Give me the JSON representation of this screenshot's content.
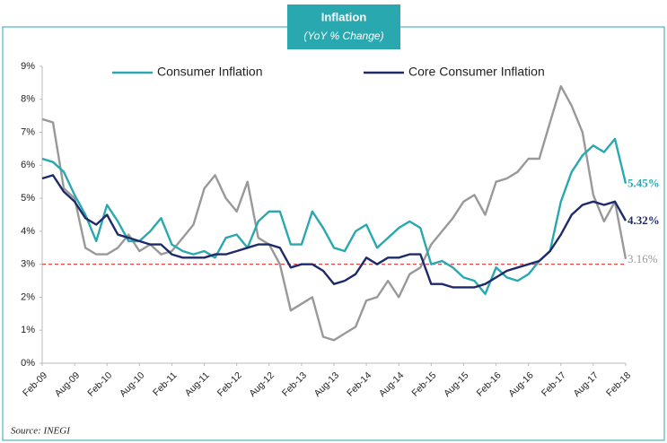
{
  "chart_data": {
    "type": "line",
    "title": "Inflation",
    "subtitle": "(YoY % Change)",
    "source": "Source: INEGI",
    "categories": [
      "Feb-09",
      null,
      null,
      "Aug-09",
      null,
      null,
      "Feb-10",
      null,
      null,
      "Aug-10",
      null,
      null,
      "Feb-11",
      null,
      null,
      "Aug-11",
      null,
      null,
      "Feb-12",
      null,
      null,
      "Aug-12",
      null,
      null,
      "Feb-13",
      null,
      null,
      "Aug-13",
      null,
      null,
      "Feb-14",
      null,
      null,
      "Aug-14",
      null,
      null,
      "Feb-15",
      null,
      null,
      "Aug-15",
      null,
      null,
      "Feb-16",
      null,
      null,
      "Aug-16",
      null,
      null,
      "Feb-17",
      null,
      null,
      "Aug-17",
      null,
      null,
      "Feb-18"
    ],
    "series": [
      {
        "name": "Consumer Inflation",
        "color": "#2aa8b0",
        "in_legend": true,
        "values": [
          6.2,
          6.1,
          5.8,
          5.1,
          4.5,
          3.7,
          4.8,
          4.3,
          3.7,
          3.7,
          4.0,
          4.4,
          3.6,
          3.4,
          3.3,
          3.4,
          3.2,
          3.8,
          3.9,
          3.5,
          4.3,
          4.6,
          4.6,
          3.6,
          3.6,
          4.6,
          4.1,
          3.5,
          3.4,
          4.0,
          4.2,
          3.5,
          3.8,
          4.1,
          4.3,
          4.1,
          3.0,
          3.1,
          2.9,
          2.6,
          2.5,
          2.1,
          2.9,
          2.6,
          2.5,
          2.7,
          3.1,
          3.4,
          4.9,
          5.8,
          6.3,
          6.6,
          6.4,
          6.8,
          5.45
        ],
        "value_labels": [
          null,
          null,
          null,
          null,
          null,
          null,
          null,
          null,
          null,
          null,
          null,
          null,
          null,
          null,
          null,
          null,
          null,
          null,
          null,
          null,
          null,
          null,
          null,
          null,
          null,
          null,
          null,
          null,
          null,
          null,
          null,
          null,
          null,
          null,
          null,
          null,
          null,
          null,
          null,
          null,
          null,
          null,
          null,
          null,
          null,
          null,
          null,
          null,
          null,
          null,
          null,
          null,
          null,
          null,
          "5.45%"
        ]
      },
      {
        "name": "Core Consumer Inflation",
        "color": "#1f2a6b",
        "in_legend": true,
        "values": [
          5.6,
          5.7,
          5.2,
          4.9,
          4.4,
          4.2,
          4.5,
          3.9,
          3.8,
          3.7,
          3.6,
          3.6,
          3.3,
          3.2,
          3.2,
          3.2,
          3.3,
          3.3,
          3.4,
          3.5,
          3.6,
          3.6,
          3.5,
          2.9,
          3.0,
          3.0,
          2.8,
          2.4,
          2.5,
          2.7,
          3.2,
          3.0,
          3.2,
          3.2,
          3.3,
          3.3,
          2.4,
          2.4,
          2.3,
          2.3,
          2.3,
          2.4,
          2.6,
          2.8,
          2.9,
          3.0,
          3.1,
          3.4,
          3.9,
          4.5,
          4.8,
          4.9,
          4.8,
          4.9,
          4.32
        ],
        "value_labels": [
          null,
          null,
          null,
          null,
          null,
          null,
          null,
          null,
          null,
          null,
          null,
          null,
          null,
          null,
          null,
          null,
          null,
          null,
          null,
          null,
          null,
          null,
          null,
          null,
          null,
          null,
          null,
          null,
          null,
          null,
          null,
          null,
          null,
          null,
          null,
          null,
          null,
          null,
          null,
          null,
          null,
          null,
          null,
          null,
          null,
          null,
          null,
          null,
          null,
          null,
          null,
          null,
          null,
          null,
          "4.32%"
        ]
      },
      {
        "color": "#999999",
        "in_legend": false,
        "values": [
          7.4,
          7.3,
          5.3,
          5.0,
          3.5,
          3.3,
          3.3,
          3.5,
          3.9,
          3.4,
          3.6,
          3.3,
          3.4,
          3.8,
          4.2,
          5.3,
          5.7,
          5.0,
          4.6,
          5.5,
          3.8,
          3.6,
          3.0,
          1.6,
          1.8,
          2.0,
          0.8,
          0.7,
          0.9,
          1.1,
          1.9,
          2.0,
          2.5,
          2.0,
          2.7,
          2.9,
          3.6,
          4.0,
          4.4,
          4.9,
          5.1,
          4.5,
          5.5,
          5.6,
          5.8,
          6.2,
          6.2,
          7.3,
          8.4,
          7.8,
          7.0,
          5.1,
          4.3,
          4.9,
          3.16
        ],
        "value_labels": [
          null,
          null,
          null,
          null,
          null,
          null,
          null,
          null,
          null,
          null,
          null,
          null,
          null,
          null,
          null,
          null,
          null,
          null,
          null,
          null,
          null,
          null,
          null,
          null,
          null,
          null,
          null,
          null,
          null,
          null,
          null,
          null,
          null,
          null,
          null,
          null,
          null,
          null,
          null,
          null,
          null,
          null,
          null,
          null,
          null,
          null,
          null,
          null,
          null,
          null,
          null,
          null,
          null,
          null,
          "3.16%"
        ]
      }
    ],
    "reference_line": {
      "value": 3,
      "color": "#e03030"
    },
    "ylim": [
      0,
      9
    ],
    "yticks": [
      {
        "value": 0,
        "label": "0%"
      },
      {
        "value": 1,
        "label": "1%"
      },
      {
        "value": 2,
        "label": "2%"
      },
      {
        "value": 3,
        "label": "3%"
      },
      {
        "value": 4,
        "label": "4%"
      },
      {
        "value": 5,
        "label": "5%"
      },
      {
        "value": 6,
        "label": "6%"
      },
      {
        "value": 7,
        "label": "7%"
      },
      {
        "value": 8,
        "label": "8%"
      },
      {
        "value": 9,
        "label": "9%"
      }
    ],
    "grid": false,
    "legend": "top"
  }
}
